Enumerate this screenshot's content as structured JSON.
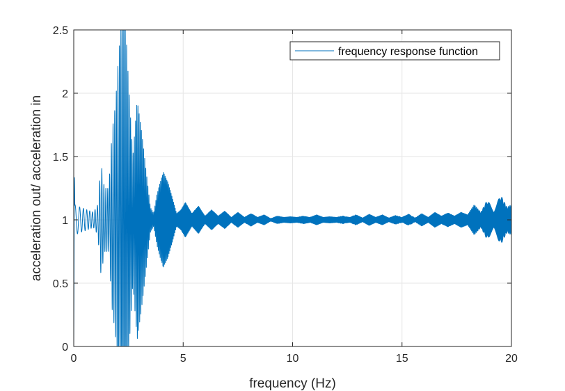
{
  "chart_data": {
    "type": "line",
    "title": "",
    "xlabel": "frequency (Hz)",
    "ylabel": "acceleration out/ acceleration in",
    "xlim": [
      0,
      20
    ],
    "ylim": [
      0,
      2.5
    ],
    "x_ticks": [
      0,
      5,
      10,
      15,
      20
    ],
    "y_ticks": [
      0,
      0.5,
      1,
      1.5,
      2,
      2.5
    ],
    "x_tick_labels": [
      "0",
      "5",
      "10",
      "15",
      "20"
    ],
    "y_tick_labels": [
      "0",
      "0.5",
      "1",
      "1.5",
      "2",
      "2.5"
    ],
    "grid": true,
    "legend_position": "top-right",
    "series": [
      {
        "name": "frequency response function",
        "color": "#0072BD",
        "envelope": {
          "x": [
            0,
            0.05,
            0.3,
            0.6,
            0.9,
            1.1,
            1.25,
            1.4,
            1.6,
            1.75,
            1.9,
            2.05,
            2.2,
            2.35,
            2.5,
            2.7,
            2.9,
            3.1,
            3.3,
            3.5,
            3.65,
            3.8,
            3.95,
            4.1,
            4.3,
            4.5,
            4.7,
            4.9,
            5.1,
            5.4,
            5.7,
            6.0,
            6.3,
            6.6,
            6.9,
            7.2,
            7.5,
            7.8,
            8.1,
            8.4,
            8.7,
            9.0,
            9.3,
            9.6,
            9.9,
            10.2,
            10.5,
            10.8,
            11.1,
            11.4,
            11.7,
            12.0,
            12.3,
            12.6,
            12.9,
            13.2,
            13.5,
            13.8,
            14.1,
            14.4,
            14.7,
            15.0,
            15.3,
            15.6,
            15.9,
            16.2,
            16.5,
            16.8,
            17.1,
            17.4,
            17.7,
            18.0,
            18.3,
            18.6,
            18.9,
            19.2,
            19.5,
            19.8,
            20.0
          ],
          "amplitude": [
            1.0,
            0.12,
            0.1,
            0.08,
            0.06,
            0.12,
            0.45,
            0.25,
            0.25,
            0.7,
            0.9,
            1.3,
            1.6,
            1.6,
            1.1,
            0.5,
            0.95,
            0.7,
            0.4,
            0.1,
            0.05,
            0.2,
            0.3,
            0.38,
            0.3,
            0.18,
            0.05,
            0.08,
            0.14,
            0.05,
            0.11,
            0.03,
            0.08,
            0.03,
            0.07,
            0.02,
            0.06,
            0.02,
            0.05,
            0.02,
            0.04,
            0.01,
            0.03,
            0.02,
            0.025,
            0.02,
            0.03,
            0.02,
            0.04,
            0.02,
            0.025,
            0.02,
            0.03,
            0.02,
            0.04,
            0.015,
            0.045,
            0.02,
            0.04,
            0.015,
            0.035,
            0.02,
            0.045,
            0.015,
            0.05,
            0.02,
            0.06,
            0.03,
            0.055,
            0.03,
            0.06,
            0.04,
            0.12,
            0.06,
            0.16,
            0.07,
            0.2,
            0.1,
            0.12
          ]
        }
      }
    ]
  }
}
